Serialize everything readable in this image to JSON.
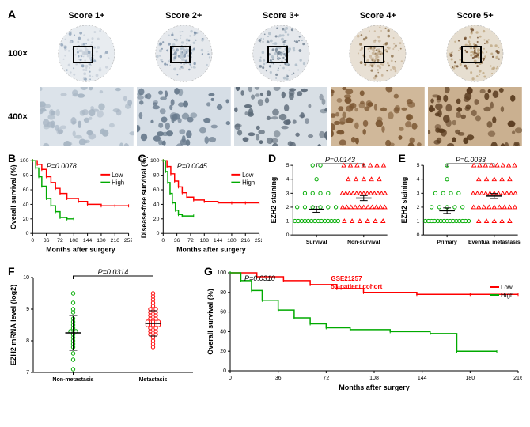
{
  "panelA": {
    "label": "A",
    "col_headers": [
      "Score 1+",
      "Score 2+",
      "Score 3+",
      "Score 4+",
      "Score 5+"
    ],
    "row_headers": [
      "100×",
      "400×"
    ],
    "tissue_colors_100x": [
      {
        "bg": "#e8ecf0",
        "core": "#c7d0da",
        "spot": "#8fa2b8"
      },
      {
        "bg": "#e6e9ed",
        "core": "#b8c4d0",
        "spot": "#7a8fa6"
      },
      {
        "bg": "#e5e8ec",
        "core": "#aebcc8",
        "spot": "#6d7d8e"
      },
      {
        "bg": "#e8e0d4",
        "core": "#c8b498",
        "spot": "#8b6f4a"
      },
      {
        "bg": "#e6ded0",
        "core": "#bfa882",
        "spot": "#6e4a28"
      }
    ],
    "tissue_colors_400x": [
      {
        "bg": "#dce3ea",
        "spot": "#a8b6c4"
      },
      {
        "bg": "#d6dee6",
        "spot": "#6a7c8e"
      },
      {
        "bg": "#d8dfe5",
        "spot": "#5c6a78"
      },
      {
        "bg": "#d0b89a",
        "spot": "#7a5632"
      },
      {
        "bg": "#cab090",
        "spot": "#5a3c20"
      }
    ]
  },
  "panelB": {
    "label": "B",
    "ylabel": "Overall survival (%)",
    "xlabel": "Months after surgery",
    "pvalue": "P=0.0078",
    "legend": [
      {
        "label": "Low",
        "color": "#ff0000"
      },
      {
        "label": "High",
        "color": "#00aa00"
      }
    ],
    "xticks": [
      0,
      36,
      72,
      108,
      144,
      180,
      216,
      252
    ],
    "yticks": [
      0,
      20,
      40,
      60,
      80,
      100
    ],
    "series": [
      {
        "color": "#ff0000",
        "points": [
          [
            0,
            100
          ],
          [
            12,
            95
          ],
          [
            24,
            88
          ],
          [
            36,
            78
          ],
          [
            48,
            70
          ],
          [
            60,
            62
          ],
          [
            72,
            55
          ],
          [
            90,
            48
          ],
          [
            120,
            44
          ],
          [
            144,
            40
          ],
          [
            180,
            38
          ],
          [
            216,
            38
          ],
          [
            252,
            38
          ]
        ]
      },
      {
        "color": "#00aa00",
        "points": [
          [
            0,
            100
          ],
          [
            8,
            90
          ],
          [
            16,
            78
          ],
          [
            24,
            65
          ],
          [
            36,
            48
          ],
          [
            48,
            38
          ],
          [
            60,
            30
          ],
          [
            72,
            22
          ],
          [
            90,
            20
          ],
          [
            108,
            20
          ]
        ]
      }
    ]
  },
  "panelC": {
    "label": "C",
    "ylabel": "Disease-free survival (%)",
    "xlabel": "Months after surgery",
    "pvalue": "P=0.0045",
    "legend": [
      {
        "label": "Low",
        "color": "#ff0000"
      },
      {
        "label": "High",
        "color": "#00aa00"
      }
    ],
    "xticks": [
      0,
      36,
      72,
      108,
      144,
      180,
      216,
      252
    ],
    "yticks": [
      0,
      20,
      40,
      60,
      80,
      100
    ],
    "series": [
      {
        "color": "#ff0000",
        "points": [
          [
            0,
            100
          ],
          [
            10,
            92
          ],
          [
            20,
            82
          ],
          [
            30,
            72
          ],
          [
            40,
            64
          ],
          [
            50,
            56
          ],
          [
            62,
            50
          ],
          [
            80,
            46
          ],
          [
            108,
            44
          ],
          [
            144,
            42
          ],
          [
            180,
            42
          ],
          [
            216,
            42
          ],
          [
            252,
            42
          ]
        ]
      },
      {
        "color": "#00aa00",
        "points": [
          [
            0,
            100
          ],
          [
            6,
            85
          ],
          [
            12,
            70
          ],
          [
            18,
            55
          ],
          [
            24,
            42
          ],
          [
            32,
            32
          ],
          [
            40,
            26
          ],
          [
            50,
            24
          ],
          [
            80,
            24
          ]
        ]
      }
    ]
  },
  "panelD": {
    "label": "D",
    "ylabel": "EZH2 staining",
    "pvalue": "P=0.0143",
    "xlabels": [
      "Survival",
      "Non-survival"
    ],
    "yticks": [
      0,
      1,
      2,
      3,
      4,
      5
    ],
    "groups": [
      {
        "color": "#00aa00",
        "marker": "circle",
        "x": 1,
        "mean": 1.85,
        "sem": 0.22,
        "points": [
          1,
          1,
          1,
          1,
          1,
          1,
          1,
          1,
          1,
          1,
          1,
          1,
          1,
          1,
          2,
          2,
          2,
          2,
          2,
          2,
          3,
          3,
          3,
          3,
          4,
          5,
          5
        ]
      },
      {
        "color": "#ff0000",
        "marker": "triangle",
        "x": 2,
        "mean": 2.65,
        "sem": 0.18,
        "points": [
          1,
          1,
          1,
          1,
          1,
          1,
          2,
          2,
          2,
          2,
          2,
          2,
          2,
          2,
          2,
          2,
          2,
          3,
          3,
          3,
          3,
          3,
          3,
          3,
          3,
          3,
          3,
          3,
          3,
          3,
          4,
          4,
          4,
          4,
          4,
          5,
          5,
          5,
          5,
          5,
          5,
          5
        ]
      }
    ]
  },
  "panelE": {
    "label": "E",
    "ylabel": "EZH2 staining",
    "pvalue": "P=0.0033",
    "xlabels": [
      "Primary",
      "Eventual metastasis"
    ],
    "yticks": [
      0,
      1,
      2,
      3,
      4,
      5
    ],
    "groups": [
      {
        "color": "#00aa00",
        "marker": "circle",
        "x": 1,
        "mean": 1.75,
        "sem": 0.2,
        "points": [
          1,
          1,
          1,
          1,
          1,
          1,
          1,
          1,
          1,
          1,
          1,
          1,
          1,
          1,
          1,
          2,
          2,
          2,
          2,
          2,
          3,
          3,
          3,
          3,
          4,
          5
        ]
      },
      {
        "color": "#ff0000",
        "marker": "triangle",
        "x": 2,
        "mean": 2.8,
        "sem": 0.18,
        "points": [
          1,
          1,
          1,
          1,
          1,
          2,
          2,
          2,
          2,
          2,
          2,
          2,
          2,
          2,
          3,
          3,
          3,
          3,
          3,
          3,
          3,
          3,
          3,
          3,
          3,
          4,
          4,
          4,
          4,
          4,
          5,
          5,
          5,
          5,
          5,
          5,
          5,
          5
        ]
      }
    ]
  },
  "panelF": {
    "label": "F",
    "ylabel": "EZH2 mRNA level (log2)",
    "pvalue": "P=0.0314",
    "xlabels": [
      "Non-metastasis",
      "Metastasis"
    ],
    "yticks": [
      7,
      8,
      9,
      10
    ],
    "groups": [
      {
        "color": "#00aa00",
        "marker": "circle",
        "x": 1,
        "mean": 8.25,
        "sd": 0.55,
        "points": [
          7.1,
          7.4,
          7.6,
          7.8,
          7.9,
          8.0,
          8.1,
          8.2,
          8.3,
          8.3,
          8.4,
          8.5,
          8.6,
          8.7,
          8.9,
          9.0,
          9.2,
          9.5
        ]
      },
      {
        "color": "#ff0000",
        "marker": "circle",
        "x": 2,
        "mean": 8.55,
        "sd": 0.4,
        "points": [
          7.8,
          7.9,
          8.0,
          8.1,
          8.2,
          8.2,
          8.3,
          8.3,
          8.4,
          8.4,
          8.5,
          8.5,
          8.5,
          8.6,
          8.6,
          8.6,
          8.7,
          8.7,
          8.8,
          8.8,
          8.9,
          8.9,
          9.0,
          9.0,
          9.1,
          9.2,
          9.3,
          9.4,
          9.5
        ]
      }
    ]
  },
  "panelG": {
    "label": "G",
    "ylabel": "Overall survival (%)",
    "xlabel": "Months after surgery",
    "title1": "GSE21257",
    "title2": "53-patient cohort",
    "pvalue": "P=0.0310",
    "legend": [
      {
        "label": "Low",
        "color": "#ff0000"
      },
      {
        "label": "High",
        "color": "#00aa00"
      }
    ],
    "xticks": [
      0,
      36,
      72,
      108,
      144,
      180,
      216
    ],
    "yticks": [
      0,
      20,
      40,
      60,
      80,
      100
    ],
    "series": [
      {
        "color": "#ff0000",
        "points": [
          [
            0,
            100
          ],
          [
            20,
            96
          ],
          [
            40,
            92
          ],
          [
            60,
            88
          ],
          [
            80,
            84
          ],
          [
            100,
            80
          ],
          [
            140,
            78
          ],
          [
            180,
            78
          ],
          [
            216,
            78
          ]
        ]
      },
      {
        "color": "#00aa00",
        "points": [
          [
            0,
            100
          ],
          [
            8,
            92
          ],
          [
            16,
            82
          ],
          [
            24,
            72
          ],
          [
            36,
            62
          ],
          [
            48,
            54
          ],
          [
            60,
            48
          ],
          [
            72,
            44
          ],
          [
            90,
            42
          ],
          [
            120,
            40
          ],
          [
            150,
            38
          ],
          [
            170,
            20
          ],
          [
            200,
            20
          ]
        ]
      }
    ]
  },
  "colors": {
    "axis": "#000000",
    "text": "#000000"
  }
}
